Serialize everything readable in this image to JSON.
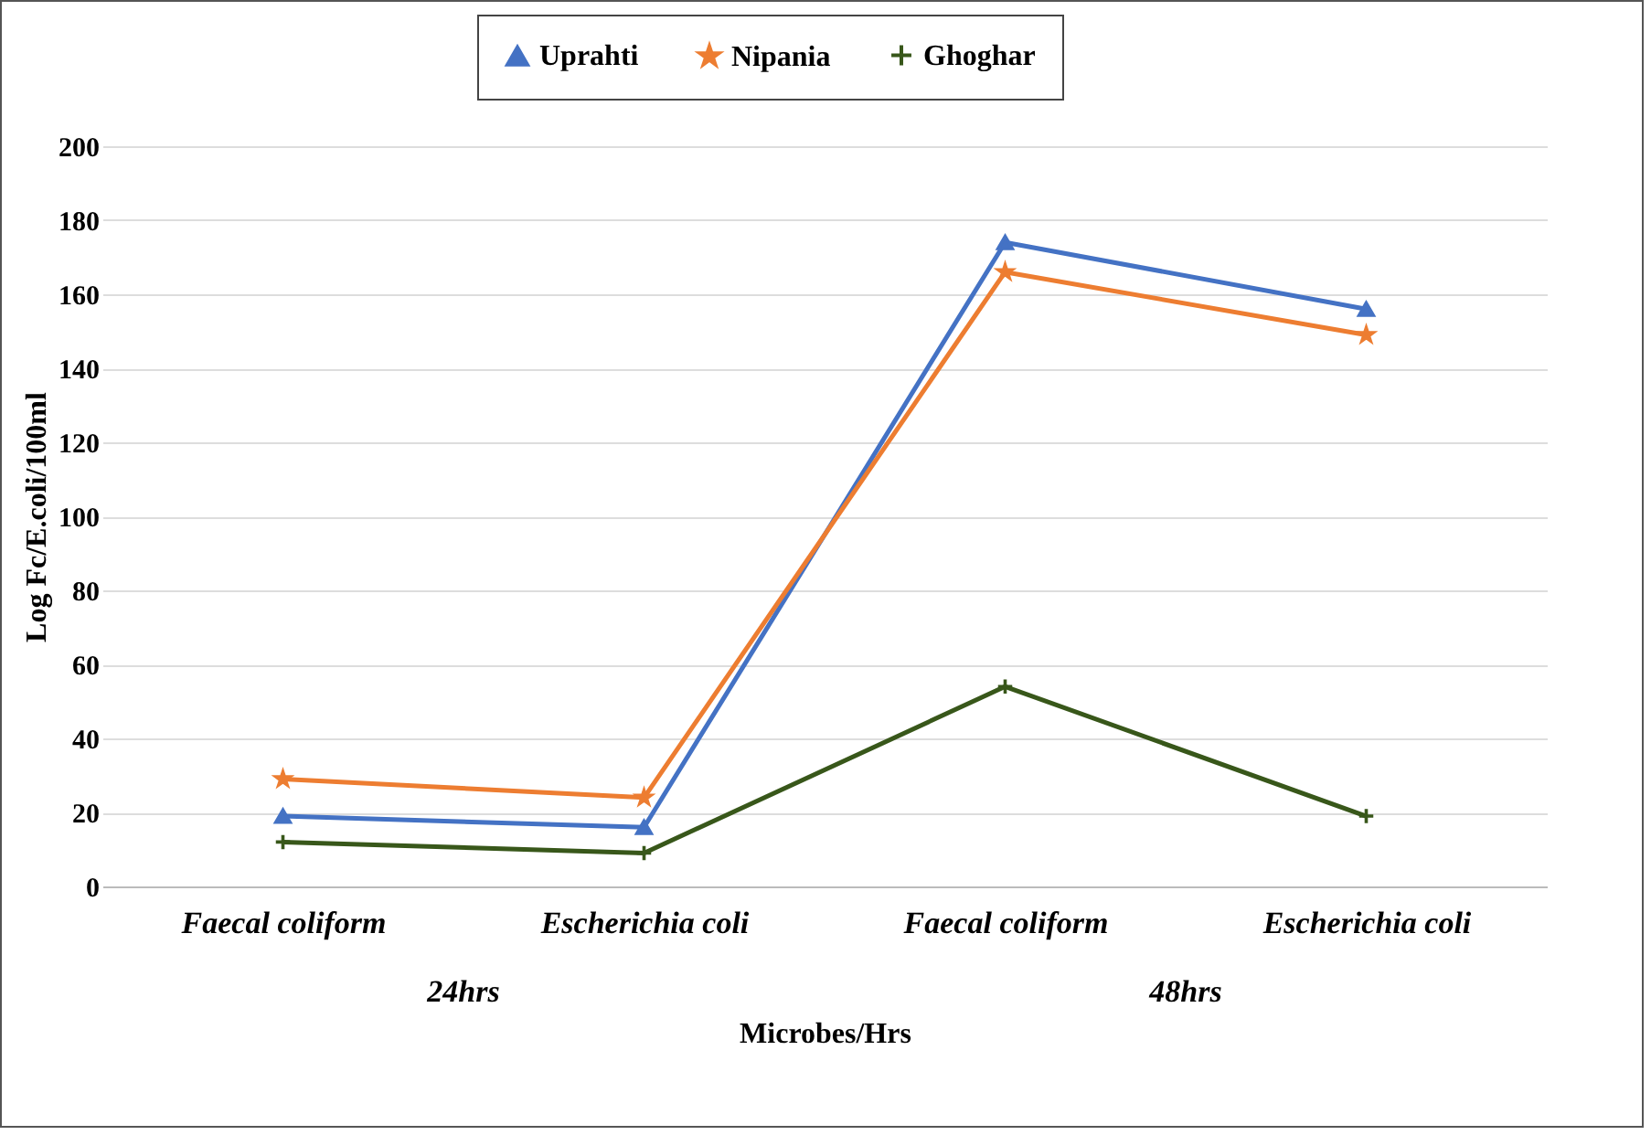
{
  "chart_data": {
    "type": "line",
    "xlabel": "Microbes/Hrs",
    "ylabel": "Log Fc/E.coli/100ml",
    "categories": [
      "Faecal coliform",
      "Escherichia coli",
      "Faecal coliform",
      "Escherichia coli"
    ],
    "annotations": [
      "24hrs",
      "48hrs"
    ],
    "series": [
      {
        "name": "Uprahti",
        "color": "#4472c4",
        "marker": "triangle",
        "values": [
          19,
          16,
          174,
          156
        ]
      },
      {
        "name": "Nipania",
        "color": "#ed7d31",
        "marker": "star",
        "values": [
          29,
          24,
          166,
          149
        ]
      },
      {
        "name": "Ghoghar",
        "color": "#38571a",
        "marker": "cross",
        "values": [
          12,
          9,
          54,
          19
        ]
      }
    ],
    "ylim": [
      0,
      200
    ],
    "yticks": [
      0,
      20,
      40,
      60,
      80,
      100,
      120,
      140,
      160,
      180,
      200
    ],
    "grid": "y",
    "legend": "top"
  }
}
